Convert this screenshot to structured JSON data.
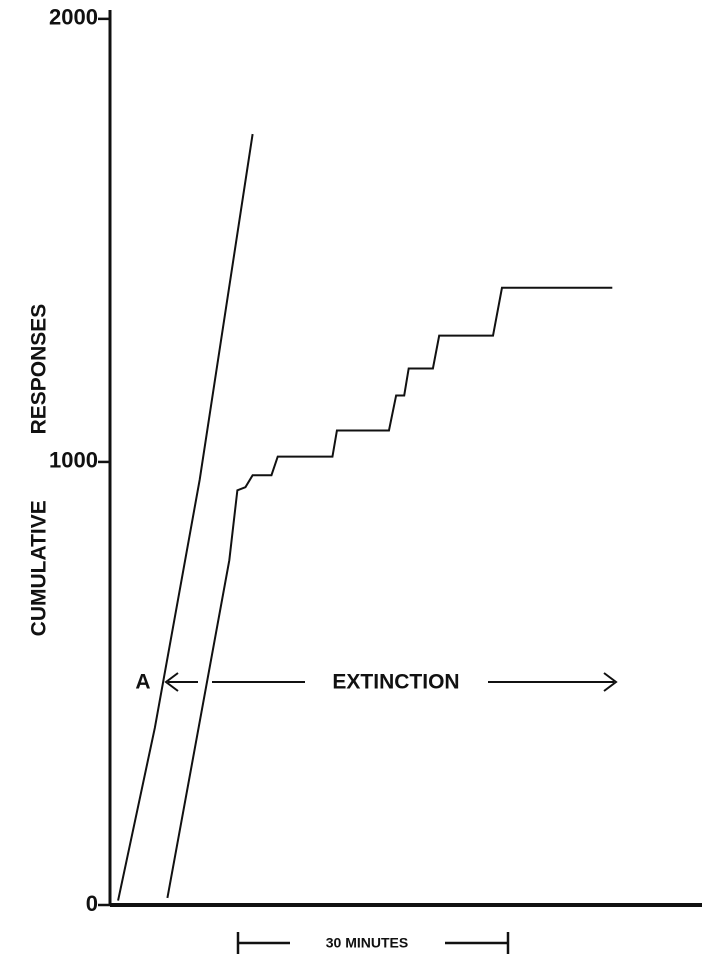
{
  "chart_data": {
    "type": "line",
    "ylabel": "CUMULATIVE RESPONSES",
    "annotations": [
      "A",
      "EXTINCTION",
      "30 MINUTES"
    ],
    "xlim": [
      0,
      66
    ],
    "ylim": [
      0,
      2020
    ],
    "yticks": [
      0,
      1000,
      2000
    ],
    "series": [
      {
        "color": "#111",
        "x": [
          0.9,
          5,
          10,
          15.9
        ],
        "values": [
          10,
          400,
          960,
          1740
        ]
      },
      {
        "color": "#111",
        "x": [
          6.4,
          13.3,
          14.2,
          15.1,
          15.9,
          18.0,
          18.7,
          24.8,
          25.3,
          31.1,
          31.9,
          32.8,
          33.3,
          36.0,
          36.7,
          42.7,
          43.7,
          56.0
        ],
        "values": [
          16,
          778,
          936,
          943,
          970,
          970,
          1012,
          1012,
          1071,
          1071,
          1150,
          1150,
          1211,
          1211,
          1285,
          1285,
          1393,
          1393
        ]
      }
    ]
  }
}
